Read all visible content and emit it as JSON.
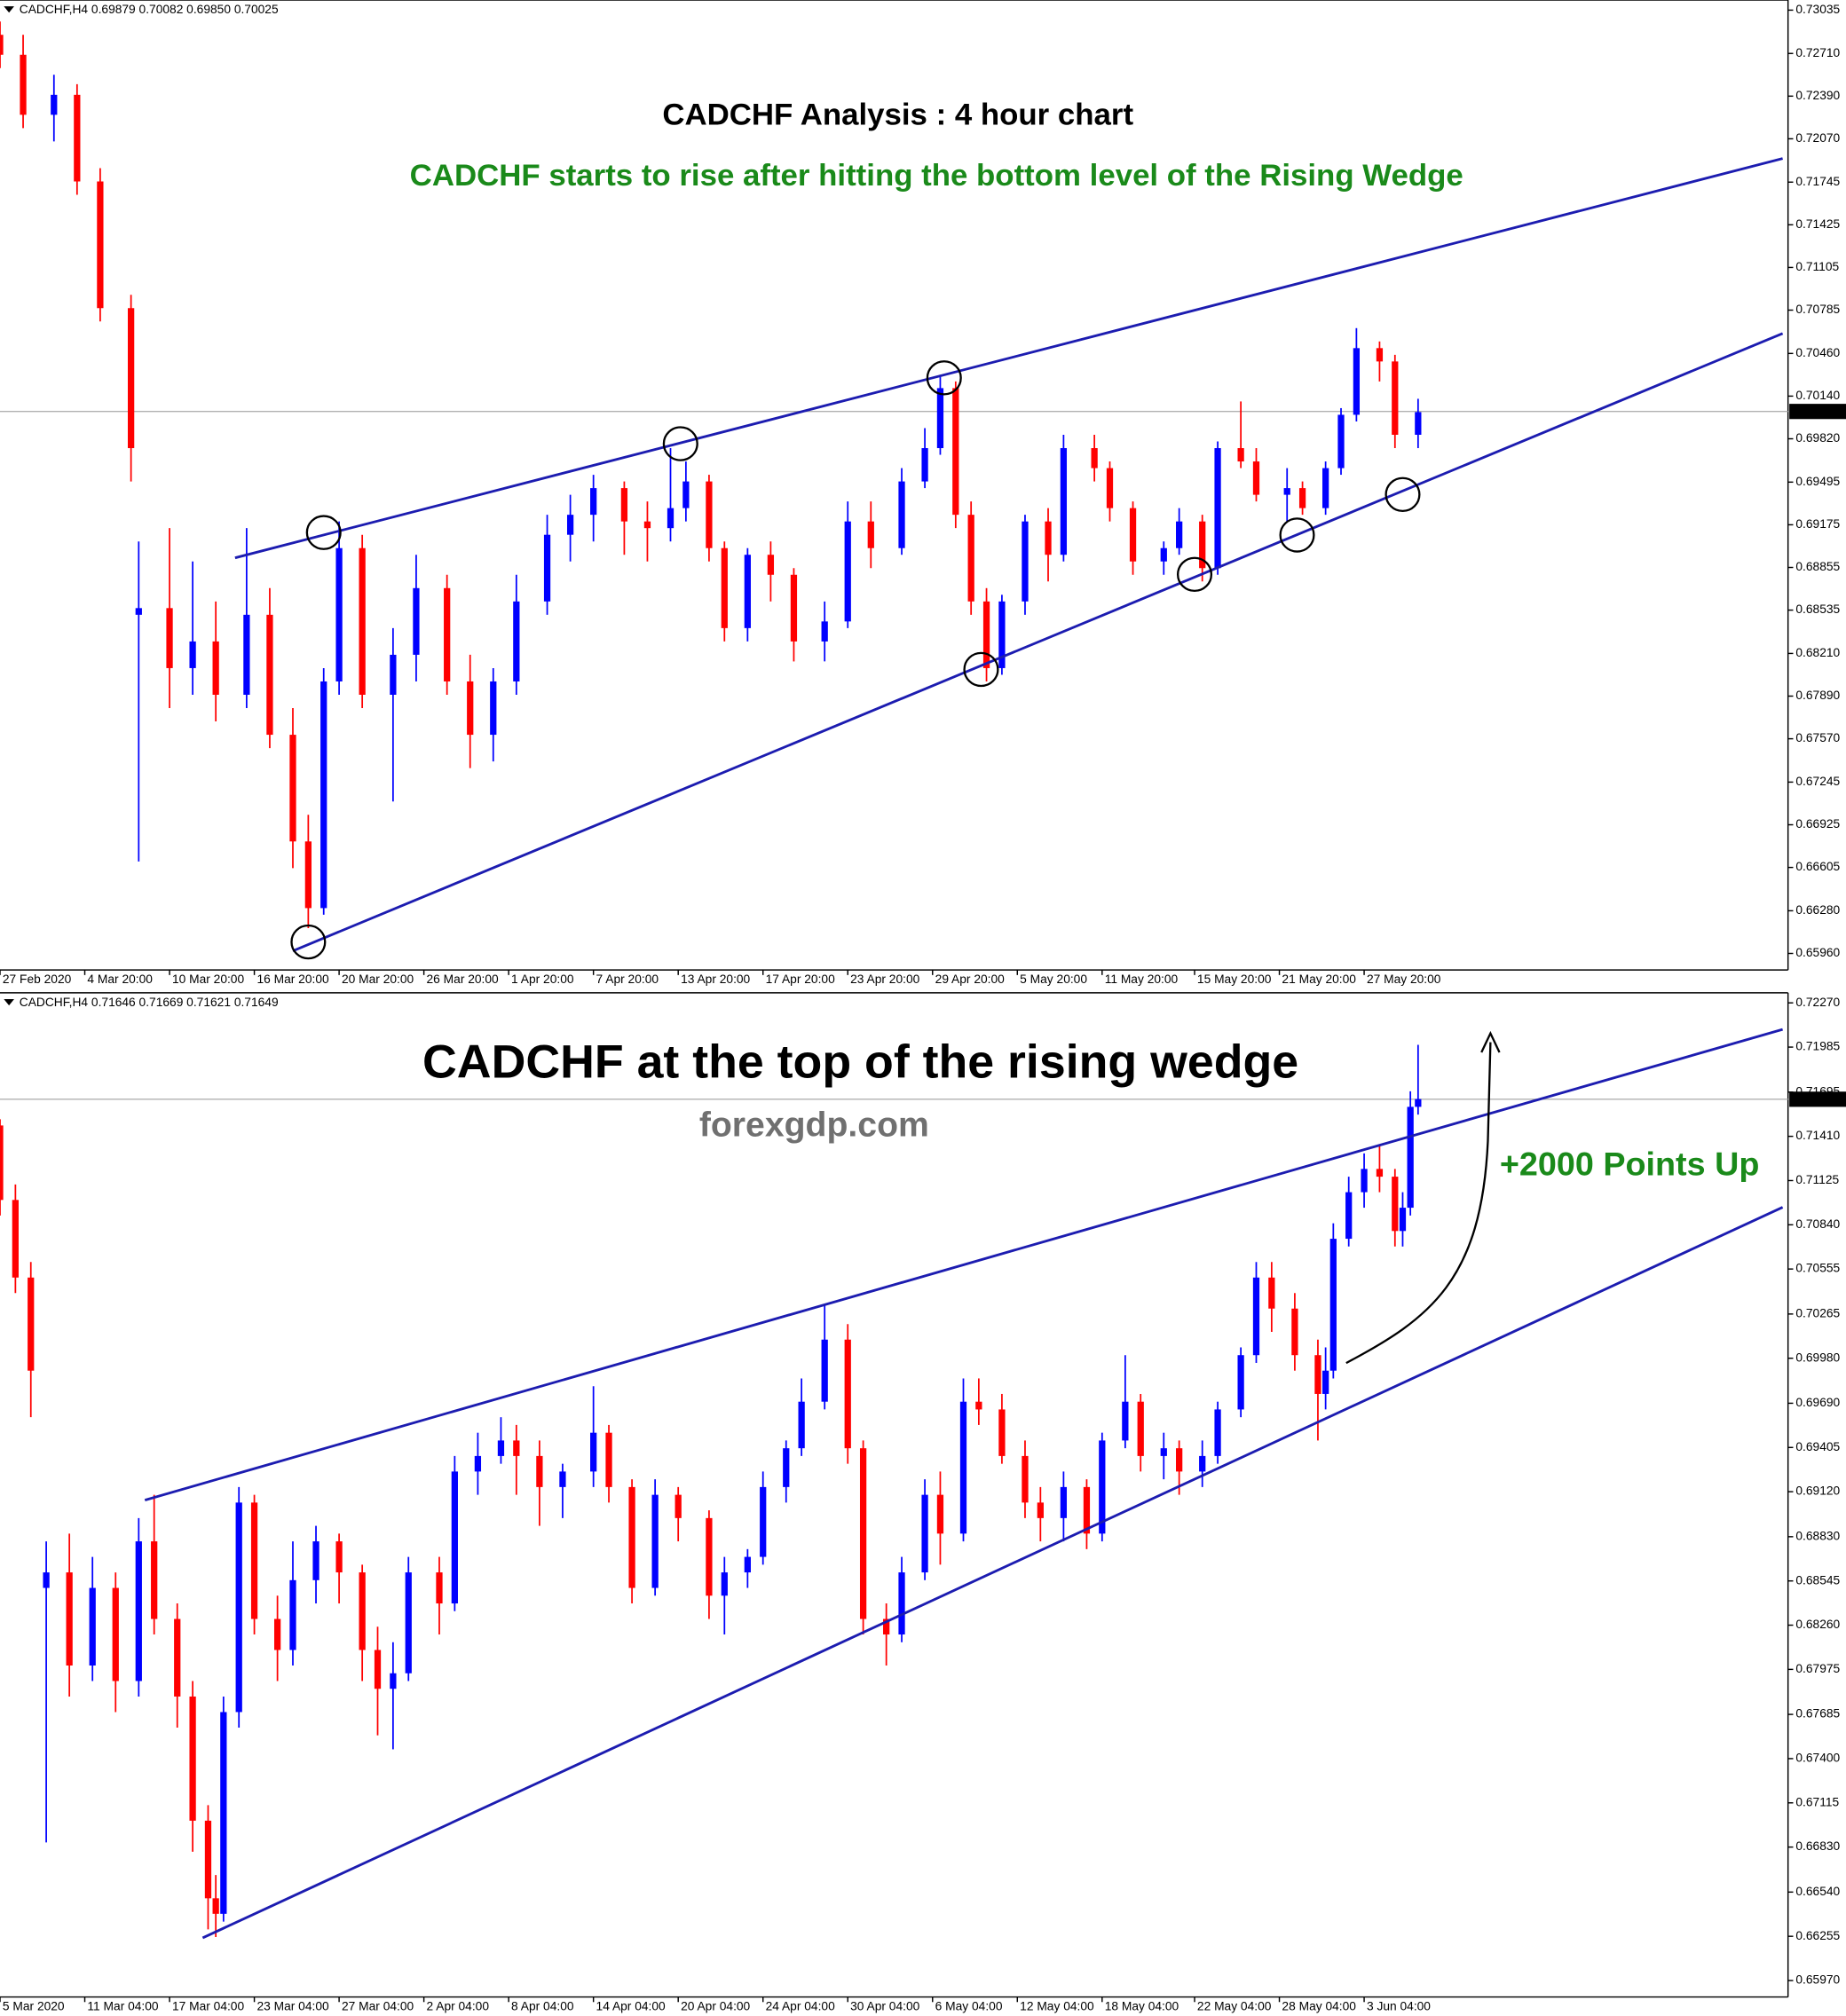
{
  "chart_data": [
    {
      "type": "candlestick",
      "header": "CADCHF,H4 0.69879 0.70082 0.69850 0.70025",
      "title": "CADCHF Analysis : 4 hour chart",
      "subtitle": "CADCHF starts to rise after hitting the bottom level of the Rising Wedge",
      "up_color": "#0000ff",
      "down_color": "#ff0000",
      "line_color": "#1c1cb0",
      "price_line_color": "#b0b0b0",
      "marker_color": "#000000",
      "xlim": [
        0,
        232
      ],
      "xticks": [
        {
          "value": 0,
          "label": "27 Feb 2020"
        },
        {
          "value": 11,
          "label": "4 Mar 20:00"
        },
        {
          "value": 22,
          "label": "10 Mar 20:00"
        },
        {
          "value": 33,
          "label": "16 Mar 20:00"
        },
        {
          "value": 44,
          "label": "20 Mar 20:00"
        },
        {
          "value": 55,
          "label": "26 Mar 20:00"
        },
        {
          "value": 66,
          "label": "1 Apr 20:00"
        },
        {
          "value": 77,
          "label": "7 Apr 20:00"
        },
        {
          "value": 88,
          "label": "13 Apr 20:00"
        },
        {
          "value": 99,
          "label": "17 Apr 20:00"
        },
        {
          "value": 110,
          "label": "23 Apr 20:00"
        },
        {
          "value": 121,
          "label": "29 Apr 20:00"
        },
        {
          "value": 132,
          "label": "5 May 20:00"
        },
        {
          "value": 143,
          "label": "11 May 20:00"
        },
        {
          "value": 155,
          "label": "15 May 20:00"
        },
        {
          "value": 166,
          "label": "21 May 20:00"
        },
        {
          "value": 177,
          "label": "27 May 20:00"
        }
      ],
      "ylim": [
        0.65836,
        0.73111
      ],
      "yticks": [
        0.73035,
        {
          "value": 0.7271,
          "label": "0.72710"
        },
        {
          "value": 0.7239,
          "label": "0.72390"
        },
        {
          "value": 0.7207,
          "label": "0.72070"
        },
        0.71745,
        0.71425,
        0.71105,
        0.70785,
        {
          "value": 0.7046,
          "label": "0.70460"
        },
        {
          "value": 0.7014,
          "label": "0.70140"
        },
        {
          "value": 0.6982,
          "label": "0.69820"
        },
        0.69495,
        0.69175,
        0.68855,
        0.68535,
        {
          "value": 0.6821,
          "label": "0.68210"
        },
        {
          "value": 0.6789,
          "label": "0.67890"
        },
        {
          "value": 0.6757,
          "label": "0.67570"
        },
        0.67245,
        0.66925,
        0.66605,
        {
          "value": 0.6628,
          "label": "0.66280"
        },
        {
          "value": 0.6596,
          "label": "0.65960"
        }
      ],
      "current_price": 0.70025,
      "x": [
        0,
        3,
        7,
        10,
        13,
        17,
        18,
        22,
        25,
        28,
        32,
        35,
        38,
        40,
        42,
        44,
        47,
        51,
        54,
        58,
        61,
        64,
        67,
        71,
        74,
        77,
        81,
        84,
        87,
        89,
        92,
        94,
        97,
        100,
        103,
        107,
        110,
        113,
        117,
        120,
        122,
        124,
        126,
        128,
        130,
        133,
        136,
        138,
        142,
        144,
        147,
        151,
        153,
        156,
        158,
        161,
        163,
        167,
        169,
        172,
        174,
        176,
        179,
        181,
        184
      ],
      "open": [
        0.7285,
        0.727,
        0.7225,
        0.724,
        0.7175,
        0.708,
        0.685,
        0.6855,
        0.681,
        0.683,
        0.679,
        0.685,
        0.676,
        0.668,
        0.663,
        0.68,
        0.69,
        0.679,
        0.682,
        0.687,
        0.68,
        0.676,
        0.68,
        0.686,
        0.691,
        0.6925,
        0.6945,
        0.692,
        0.6915,
        0.693,
        0.695,
        0.69,
        0.684,
        0.6895,
        0.688,
        0.683,
        0.6845,
        0.692,
        0.69,
        0.695,
        0.6975,
        0.702,
        0.6925,
        0.686,
        0.681,
        0.686,
        0.692,
        0.6895,
        0.6975,
        0.696,
        0.693,
        0.689,
        0.69,
        0.692,
        0.6885,
        0.6975,
        0.6965,
        0.694,
        0.6945,
        0.693,
        0.696,
        0.7,
        0.705,
        0.704,
        0.6985
      ],
      "high": [
        0.7295,
        0.7285,
        0.7255,
        0.7248,
        0.7185,
        0.709,
        0.6905,
        0.6915,
        0.689,
        0.686,
        0.6915,
        0.687,
        0.678,
        0.67,
        0.681,
        0.692,
        0.691,
        0.684,
        0.6895,
        0.688,
        0.682,
        0.681,
        0.688,
        0.6925,
        0.694,
        0.6955,
        0.695,
        0.6935,
        0.6975,
        0.6965,
        0.6955,
        0.6905,
        0.69,
        0.6905,
        0.6885,
        0.686,
        0.6935,
        0.6935,
        0.696,
        0.699,
        0.703,
        0.7025,
        0.6935,
        0.687,
        0.6865,
        0.6925,
        0.693,
        0.6985,
        0.6985,
        0.6965,
        0.6935,
        0.6905,
        0.693,
        0.6925,
        0.698,
        0.701,
        0.6975,
        0.696,
        0.695,
        0.6965,
        0.7005,
        0.7065,
        0.7055,
        0.7045,
        0.7012
      ],
      "low": [
        0.726,
        0.7215,
        0.7205,
        0.7165,
        0.707,
        0.695,
        0.6665,
        0.678,
        0.679,
        0.677,
        0.678,
        0.675,
        0.666,
        0.6615,
        0.6625,
        0.679,
        0.678,
        0.671,
        0.68,
        0.679,
        0.6735,
        0.674,
        0.679,
        0.685,
        0.689,
        0.6905,
        0.6895,
        0.689,
        0.6905,
        0.692,
        0.689,
        0.683,
        0.683,
        0.686,
        0.6815,
        0.6815,
        0.684,
        0.6885,
        0.6895,
        0.6945,
        0.697,
        0.6915,
        0.685,
        0.68,
        0.6805,
        0.685,
        0.6875,
        0.689,
        0.695,
        0.692,
        0.688,
        0.688,
        0.6895,
        0.6875,
        0.688,
        0.696,
        0.6935,
        0.692,
        0.6925,
        0.6925,
        0.6955,
        0.6995,
        0.7025,
        0.6975,
        0.6975
      ],
      "close": [
        0.727,
        0.7225,
        0.724,
        0.7175,
        0.708,
        0.6975,
        0.6855,
        0.681,
        0.683,
        0.679,
        0.685,
        0.676,
        0.668,
        0.663,
        0.68,
        0.69,
        0.679,
        0.682,
        0.687,
        0.68,
        0.676,
        0.68,
        0.686,
        0.691,
        0.6925,
        0.6945,
        0.692,
        0.6915,
        0.693,
        0.695,
        0.69,
        0.684,
        0.6895,
        0.688,
        0.683,
        0.6845,
        0.692,
        0.69,
        0.695,
        0.6975,
        0.702,
        0.6925,
        0.686,
        0.681,
        0.686,
        0.692,
        0.6895,
        0.6975,
        0.696,
        0.693,
        0.689,
        0.69,
        0.692,
        0.6885,
        0.6975,
        0.6965,
        0.694,
        0.6945,
        0.693,
        0.696,
        0.7,
        0.705,
        0.704,
        0.6985,
        0.7002
      ],
      "trend_lines": [
        {
          "x": [
            30.5,
            231.3
          ],
          "y": [
            0.68927,
            0.71922
          ]
        },
        {
          "x": [
            38,
            231.3
          ],
          "y": [
            0.65979,
            0.7061
          ]
        }
      ],
      "markers": {
        "x": [
          40,
          42,
          88.3,
          122.5,
          127.3,
          155,
          168.3,
          182
        ],
        "y": [
          0.66046,
          0.69117,
          0.69783,
          0.70277,
          0.6809,
          0.68803,
          0.69098,
          0.69402
        ]
      }
    },
    {
      "type": "candlestick",
      "header": "CADCHF,H4 0.71646 0.71669 0.71621 0.71649",
      "title": "CADCHF at the top of the rising wedge",
      "annotations": [
        "forexgdp.com",
        "+2000 Points Up"
      ],
      "up_color": "#0000ff",
      "down_color": "#ff0000",
      "line_color": "#1c1cb0",
      "price_line_color": "#b0b0b0",
      "xlim": [
        0,
        232
      ],
      "xticks": [
        {
          "value": 0,
          "label": "5 Mar 2020"
        },
        {
          "value": 11,
          "label": "11 Mar 04:00"
        },
        {
          "value": 22,
          "label": "17 Mar 04:00"
        },
        {
          "value": 33,
          "label": "23 Mar 04:00"
        },
        {
          "value": 44,
          "label": "27 Mar 04:00"
        },
        {
          "value": 55,
          "label": "2 Apr 04:00"
        },
        {
          "value": 66,
          "label": "8 Apr 04:00"
        },
        {
          "value": 77,
          "label": "14 Apr 04:00"
        },
        {
          "value": 88,
          "label": "20 Apr 04:00"
        },
        {
          "value": 99,
          "label": "24 Apr 04:00"
        },
        {
          "value": 110,
          "label": "30 Apr 04:00"
        },
        {
          "value": 121,
          "label": "6 May 04:00"
        },
        {
          "value": 132,
          "label": "12 May 04:00"
        },
        {
          "value": 143,
          "label": "18 May 04:00"
        },
        {
          "value": 155,
          "label": "22 May 04:00"
        },
        {
          "value": 166,
          "label": "28 May 04:00"
        },
        {
          "value": 177,
          "label": "3 Jun 04:00"
        }
      ],
      "ylim": [
        0.65864,
        0.72335
      ],
      "yticks": [
        {
          "value": 0.7227,
          "label": "0.72270"
        },
        0.71985,
        0.71695,
        {
          "value": 0.7141,
          "label": "0.71410"
        },
        0.71125,
        {
          "value": 0.7084,
          "label": "0.70840"
        },
        0.70555,
        0.70265,
        {
          "value": 0.6998,
          "label": "0.69980"
        },
        {
          "value": 0.6969,
          "label": "0.69690"
        },
        0.69405,
        {
          "value": 0.6912,
          "label": "0.69120"
        },
        {
          "value": 0.6883,
          "label": "0.68830"
        },
        0.68545,
        {
          "value": 0.6826,
          "label": "0.68260"
        },
        0.67975,
        0.67685,
        {
          "value": 0.674,
          "label": "0.67400"
        },
        0.67115,
        {
          "value": 0.6683,
          "label": "0.66830"
        },
        {
          "value": 0.6654,
          "label": "0.66540"
        },
        0.66255,
        {
          "value": 0.6597,
          "label": "0.65970"
        }
      ],
      "current_price": 0.71649,
      "x": [
        0,
        2,
        4,
        6,
        9,
        12,
        15,
        18,
        20,
        23,
        25,
        27,
        28,
        29,
        31,
        33,
        36,
        38,
        41,
        44,
        47,
        49,
        51,
        53,
        57,
        59,
        62,
        65,
        67,
        70,
        73,
        77,
        79,
        82,
        85,
        88,
        92,
        94,
        97,
        99,
        102,
        104,
        107,
        110,
        112,
        115,
        117,
        120,
        122,
        125,
        127,
        130,
        133,
        135,
        138,
        141,
        143,
        146,
        148,
        151,
        153,
        156,
        158,
        161,
        163,
        165,
        168,
        171,
        172,
        173,
        175,
        177,
        179,
        181,
        182,
        183,
        184
      ],
      "open": [
        0.7148,
        0.71,
        0.705,
        0.685,
        0.686,
        0.68,
        0.685,
        0.679,
        0.688,
        0.683,
        0.678,
        0.67,
        0.665,
        0.664,
        0.677,
        0.6905,
        0.683,
        0.681,
        0.6855,
        0.688,
        0.686,
        0.681,
        0.6785,
        0.6795,
        0.686,
        0.684,
        0.6925,
        0.6935,
        0.6945,
        0.6935,
        0.6915,
        0.6925,
        0.695,
        0.6915,
        0.685,
        0.691,
        0.6895,
        0.6845,
        0.686,
        0.687,
        0.6915,
        0.694,
        0.697,
        0.701,
        0.694,
        0.683,
        0.682,
        0.686,
        0.691,
        0.6885,
        0.697,
        0.6965,
        0.6935,
        0.6905,
        0.6895,
        0.6915,
        0.6885,
        0.6945,
        0.697,
        0.6935,
        0.694,
        0.6925,
        0.6935,
        0.6965,
        0.7,
        0.705,
        0.703,
        0.7,
        0.6975,
        0.699,
        0.7075,
        0.7105,
        0.712,
        0.7115,
        0.708,
        0.7095,
        0.716
      ],
      "high": [
        0.7152,
        0.711,
        0.706,
        0.688,
        0.6885,
        0.687,
        0.686,
        0.6895,
        0.691,
        0.684,
        0.679,
        0.671,
        0.6665,
        0.678,
        0.6915,
        0.691,
        0.6845,
        0.688,
        0.689,
        0.6885,
        0.6865,
        0.6825,
        0.6815,
        0.687,
        0.687,
        0.6935,
        0.695,
        0.696,
        0.6955,
        0.6945,
        0.693,
        0.698,
        0.6955,
        0.692,
        0.692,
        0.6915,
        0.69,
        0.687,
        0.6875,
        0.6925,
        0.6945,
        0.6985,
        0.7032,
        0.702,
        0.6945,
        0.684,
        0.687,
        0.692,
        0.6925,
        0.6985,
        0.6985,
        0.6975,
        0.6945,
        0.6915,
        0.6925,
        0.692,
        0.695,
        0.7,
        0.6975,
        0.695,
        0.6945,
        0.6945,
        0.697,
        0.7005,
        0.706,
        0.706,
        0.704,
        0.701,
        0.7005,
        0.7085,
        0.7115,
        0.713,
        0.7135,
        0.712,
        0.7105,
        0.717,
        0.72
      ],
      "low": [
        0.709,
        0.704,
        0.696,
        0.6686,
        0.678,
        0.679,
        0.677,
        0.678,
        0.682,
        0.676,
        0.668,
        0.663,
        0.6625,
        0.6635,
        0.676,
        0.682,
        0.679,
        0.68,
        0.684,
        0.684,
        0.679,
        0.6755,
        0.6746,
        0.679,
        0.682,
        0.6835,
        0.691,
        0.693,
        0.691,
        0.689,
        0.6895,
        0.6915,
        0.6905,
        0.684,
        0.6845,
        0.688,
        0.683,
        0.682,
        0.685,
        0.6865,
        0.6905,
        0.6935,
        0.6965,
        0.693,
        0.682,
        0.68,
        0.6815,
        0.6855,
        0.6865,
        0.688,
        0.6955,
        0.693,
        0.6895,
        0.688,
        0.688,
        0.6875,
        0.688,
        0.694,
        0.6925,
        0.692,
        0.691,
        0.6915,
        0.693,
        0.696,
        0.6995,
        0.7015,
        0.699,
        0.6945,
        0.6965,
        0.6985,
        0.707,
        0.7095,
        0.7105,
        0.707,
        0.707,
        0.709,
        0.7155
      ],
      "close": [
        0.71,
        0.705,
        0.699,
        0.686,
        0.68,
        0.685,
        0.679,
        0.688,
        0.683,
        0.678,
        0.67,
        0.665,
        0.664,
        0.677,
        0.6905,
        0.683,
        0.681,
        0.6855,
        0.688,
        0.686,
        0.681,
        0.6785,
        0.6795,
        0.686,
        0.684,
        0.6925,
        0.6935,
        0.6945,
        0.6935,
        0.6915,
        0.6925,
        0.695,
        0.6915,
        0.685,
        0.691,
        0.6895,
        0.6845,
        0.686,
        0.687,
        0.6915,
        0.694,
        0.697,
        0.701,
        0.694,
        0.683,
        0.682,
        0.686,
        0.691,
        0.6885,
        0.697,
        0.6965,
        0.6935,
        0.6905,
        0.6895,
        0.6915,
        0.6885,
        0.6945,
        0.697,
        0.6935,
        0.694,
        0.6925,
        0.6935,
        0.6965,
        0.7,
        0.705,
        0.703,
        0.7,
        0.6975,
        0.699,
        0.7075,
        0.7105,
        0.712,
        0.7115,
        0.708,
        0.7095,
        0.716,
        0.7165
      ],
      "trend_lines": [
        {
          "x": [
            18.8,
            231.3
          ],
          "y": [
            0.69066,
            0.72099
          ]
        },
        {
          "x": [
            26.3,
            231.3
          ],
          "y": [
            0.66245,
            0.70953
          ]
        }
      ]
    }
  ]
}
